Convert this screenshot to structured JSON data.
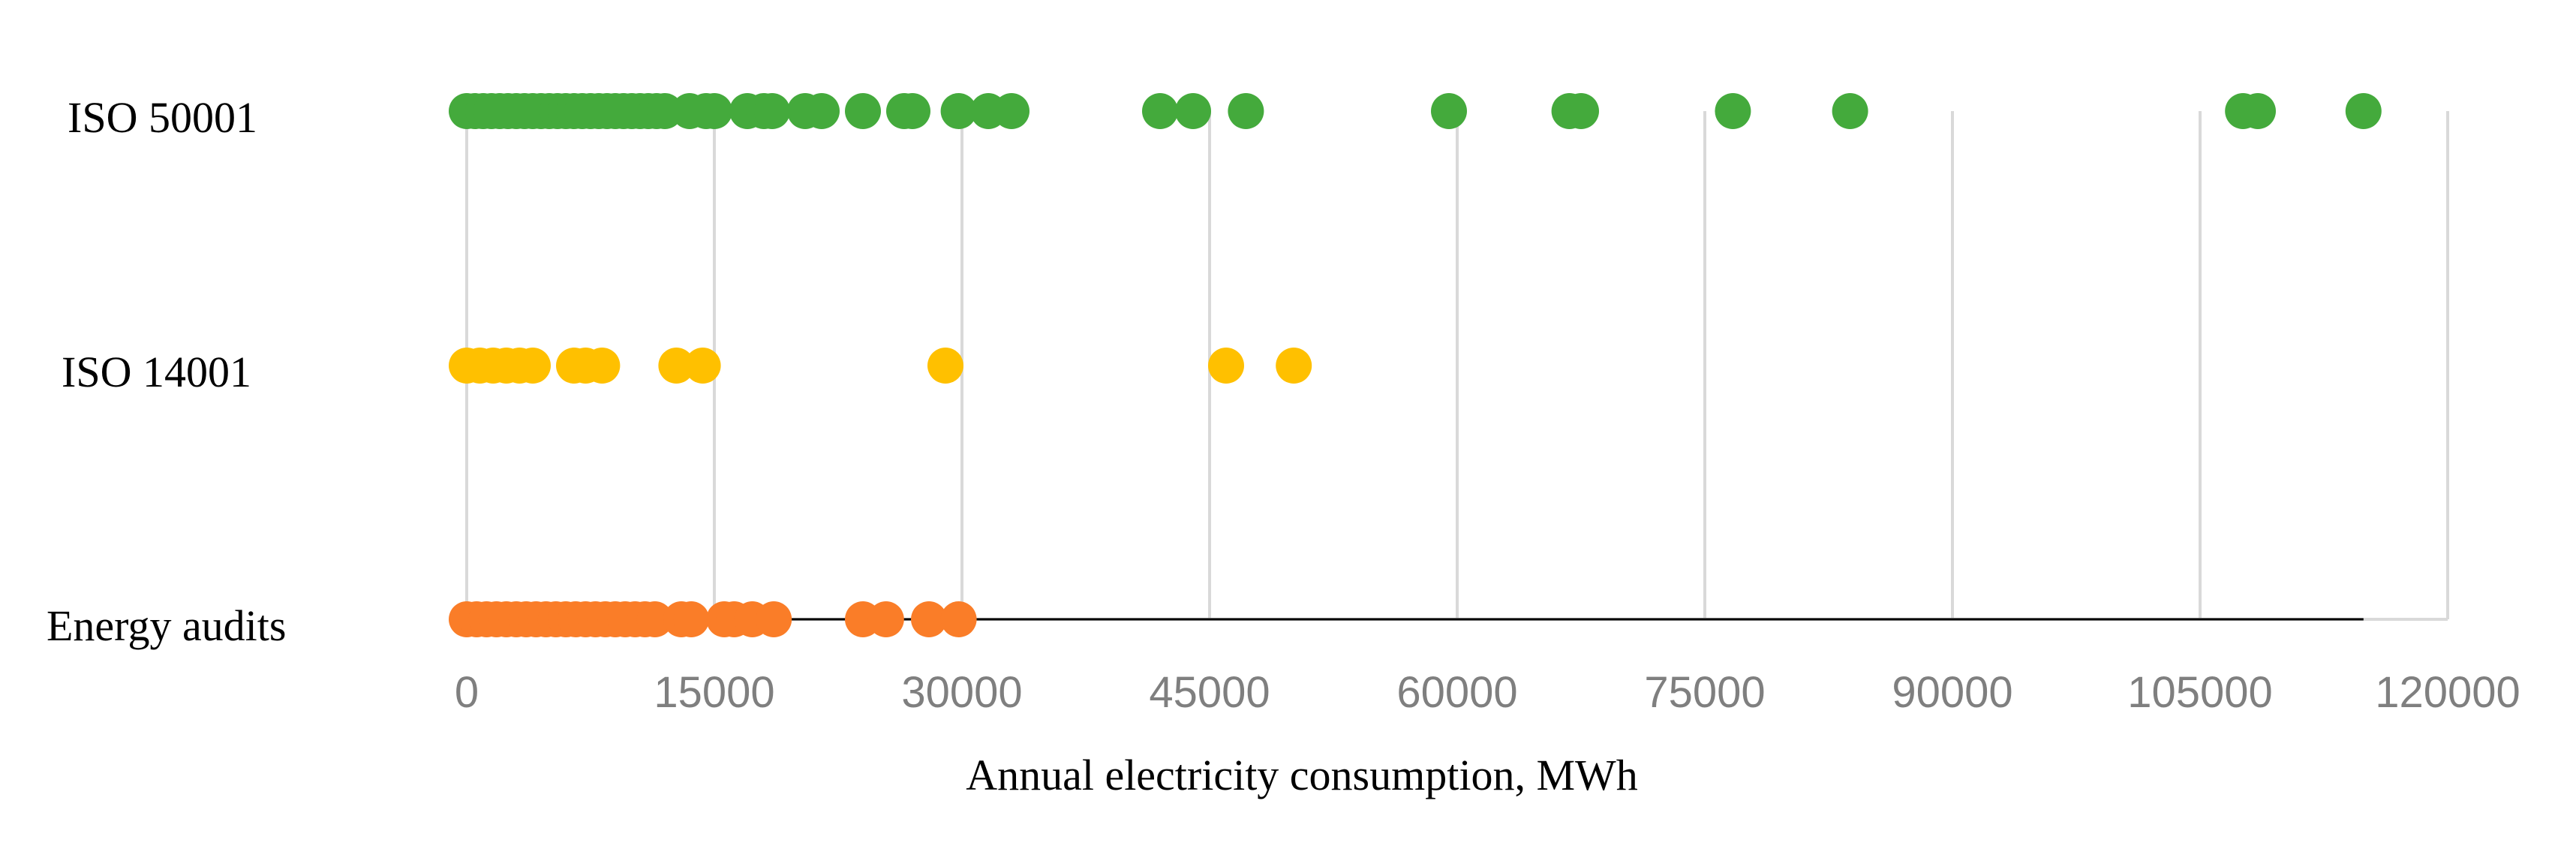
{
  "chart_data": {
    "type": "scatter",
    "title": "",
    "xlabel": "Annual electricity consumption, MWh",
    "ylabel": "",
    "xlim": [
      0,
      120000
    ],
    "xticks": [
      0,
      15000,
      30000,
      45000,
      60000,
      75000,
      90000,
      105000,
      120000
    ],
    "xtick_labels": [
      "0",
      "15000",
      "30000",
      "45000",
      "60000",
      "75000",
      "90000",
      "105000",
      "120000"
    ],
    "grid": true,
    "categories": [
      "ISO 50001",
      "ISO 14001",
      "Energy audits"
    ],
    "series": [
      {
        "name": "ISO 50001",
        "color": "#44aa3c",
        "values": [
          0,
          500,
          1000,
          1500,
          2000,
          2500,
          3000,
          3500,
          4000,
          4500,
          5000,
          5500,
          6000,
          6500,
          7000,
          7500,
          8000,
          8500,
          9000,
          9500,
          10000,
          10500,
          11000,
          11500,
          12000,
          13500,
          14500,
          15000,
          17000,
          18000,
          18500,
          20500,
          21500,
          24000,
          26500,
          27000,
          29800,
          31600,
          33000,
          42000,
          44000,
          47200,
          59500,
          66800,
          67500,
          76700,
          83800,
          107600,
          108500,
          114900
        ]
      },
      {
        "name": "ISO 14001",
        "color": "#ffc000",
        "values": [
          0,
          800,
          1600,
          2400,
          3200,
          4000,
          6500,
          7200,
          8200,
          12700,
          14300,
          29000,
          46000,
          50100
        ]
      },
      {
        "name": "Energy audits",
        "color": "#fa7d28",
        "values": [
          0,
          600,
          1200,
          1800,
          2400,
          3000,
          3600,
          4200,
          4800,
          5400,
          6000,
          6600,
          7200,
          7800,
          8400,
          9000,
          9600,
          10200,
          10800,
          11400,
          13000,
          13600,
          15600,
          16200,
          17300,
          18600,
          24000,
          25400,
          28000,
          29800
        ]
      }
    ]
  }
}
